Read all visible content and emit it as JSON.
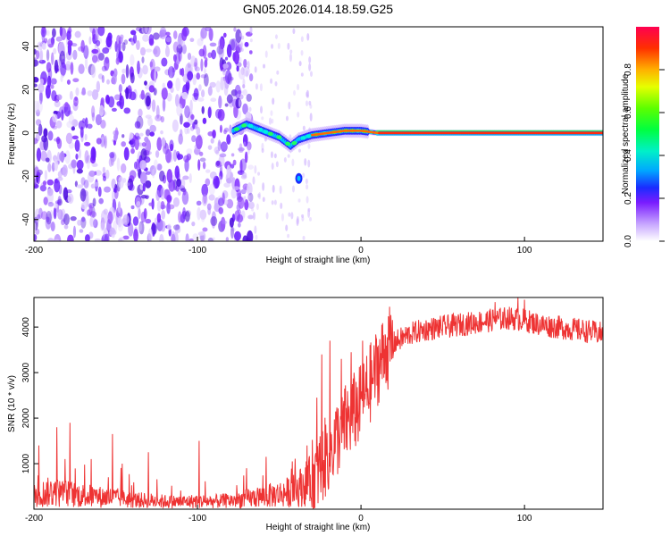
{
  "title": "GN05.2026.014.18.59.G25",
  "chart_data": [
    {
      "type": "heatmap",
      "xlabel": "Height of straight line (km)",
      "ylabel": "Frequency (Hz)",
      "xlim": [
        -200,
        148
      ],
      "ylim": [
        -50,
        49
      ],
      "x_ticks": [
        -200,
        -100,
        0,
        100
      ],
      "x_tick_labels": [
        "-200",
        "-100",
        "0",
        "100"
      ],
      "y_ticks": [
        40,
        20,
        0,
        -20,
        -40
      ],
      "y_tick_labels": [
        "40",
        "20",
        "0",
        "-20",
        "-40"
      ],
      "colorbar": {
        "label": "Normalized spectral amplitude",
        "range": [
          0,
          1
        ],
        "ticks": [
          0.0,
          0.2,
          0.4,
          0.6,
          0.8
        ],
        "tick_labels": [
          "0.0",
          "0.2",
          "0.4",
          "0.6",
          "0.8"
        ]
      },
      "features": {
        "noise_region_km": [
          -200,
          -75
        ],
        "carrier_ridge": [
          {
            "x": -78,
            "y": 1
          },
          {
            "x": -70,
            "y": 4
          },
          {
            "x": -60,
            "y": 1
          },
          {
            "x": -50,
            "y": -2
          },
          {
            "x": -43,
            "y": -6
          },
          {
            "x": -38,
            "y": -3
          },
          {
            "x": -30,
            "y": -1
          },
          {
            "x": -20,
            "y": 0
          },
          {
            "x": -10,
            "y": 1
          },
          {
            "x": 0,
            "y": 1
          },
          {
            "x": 10,
            "y": 0
          },
          {
            "x": 60,
            "y": 0
          },
          {
            "x": 148,
            "y": 0
          }
        ],
        "spur": {
          "x": -38,
          "y": -21
        }
      }
    },
    {
      "type": "line",
      "xlabel": "Height of straight line (km)",
      "ylabel": "SNR (10 * v/v)",
      "xlim": [
        -200,
        148
      ],
      "ylim": [
        0,
        4650
      ],
      "x_ticks": [
        -200,
        -100,
        0,
        100
      ],
      "x_tick_labels": [
        "-200",
        "-100",
        "0",
        "100"
      ],
      "y_ticks": [
        1000,
        2000,
        3000,
        4000
      ],
      "y_tick_labels": [
        "1000",
        "2000",
        "3000",
        "4000"
      ],
      "series": [
        {
          "name": "SNR",
          "color": "#ee3333",
          "x": [
            -200,
            -190,
            -180,
            -170,
            -160,
            -150,
            -140,
            -130,
            -120,
            -110,
            -100,
            -90,
            -80,
            -70,
            -60,
            -50,
            -40,
            -30,
            -25,
            -20,
            -15,
            -10,
            -5,
            0,
            5,
            10,
            15,
            20,
            30,
            40,
            50,
            60,
            70,
            80,
            90,
            100,
            110,
            120,
            130,
            140,
            148
          ],
          "y": [
            300,
            380,
            340,
            300,
            270,
            250,
            200,
            190,
            170,
            160,
            180,
            170,
            190,
            230,
            280,
            330,
            420,
            650,
            900,
            1250,
            1550,
            1850,
            2100,
            2300,
            2700,
            3150,
            3450,
            3650,
            3850,
            3950,
            4000,
            4050,
            4100,
            4150,
            4200,
            4150,
            4050,
            4000,
            3950,
            3900,
            3850
          ]
        }
      ],
      "spikes": [
        {
          "x": -197,
          "y": 1400
        },
        {
          "x": -186,
          "y": 1800
        },
        {
          "x": -181,
          "y": 1100
        },
        {
          "x": -178,
          "y": 1900
        },
        {
          "x": -165,
          "y": 1100
        },
        {
          "x": -152,
          "y": 1650
        },
        {
          "x": -146,
          "y": 1000
        },
        {
          "x": -130,
          "y": 1250
        },
        {
          "x": -99,
          "y": 1500
        },
        {
          "x": -70,
          "y": 900
        },
        {
          "x": -58,
          "y": 1150
        },
        {
          "x": -42,
          "y": 1050
        },
        {
          "x": -33,
          "y": 1400
        },
        {
          "x": -27,
          "y": 2450
        },
        {
          "x": -24,
          "y": 3400
        },
        {
          "x": -19,
          "y": 3700
        },
        {
          "x": -12,
          "y": 3300
        },
        {
          "x": -6,
          "y": 3450
        },
        {
          "x": 1,
          "y": 3700
        },
        {
          "x": 8,
          "y": 3600
        },
        {
          "x": 15,
          "y": 3800
        },
        {
          "x": 82,
          "y": 4550
        },
        {
          "x": 96,
          "y": 4650
        },
        {
          "x": 100,
          "y": 4600
        }
      ]
    }
  ]
}
